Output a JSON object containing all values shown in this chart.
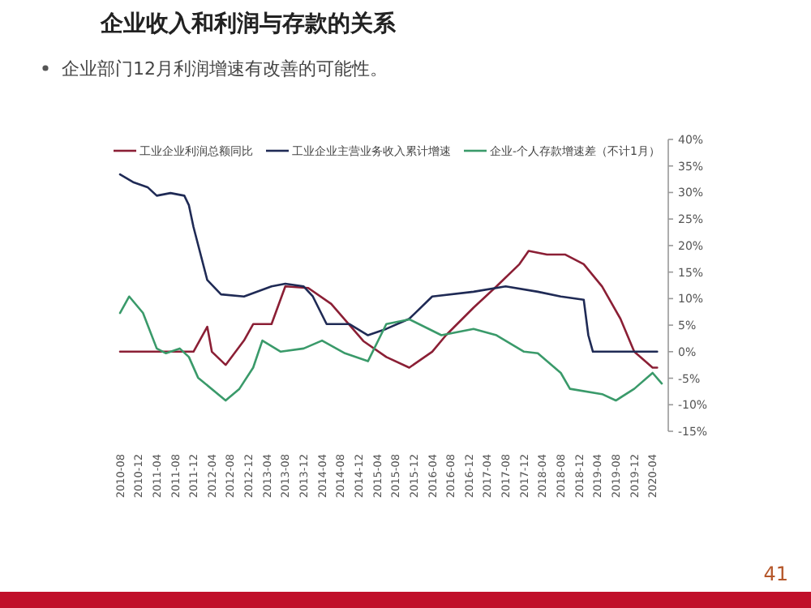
{
  "chart_data": {
    "type": "line",
    "title": "企业收入和利润与存款的关系",
    "subtitle": "企业部门12月利润增速有改善的可能性。",
    "annotations": [
      "41"
    ],
    "legend": "top",
    "grid": false,
    "marker": "none",
    "line_style": "solid",
    "xlim": [
      "2010-08",
      "2020-06"
    ],
    "xticks": [
      "2010-08",
      "2010-12",
      "2011-04",
      "2011-08",
      "2011-12",
      "2012-04",
      "2012-08",
      "2012-12",
      "2013-04",
      "2013-08",
      "2013-12",
      "2014-04",
      "2014-08",
      "2014-12",
      "2015-04",
      "2015-08",
      "2015-12",
      "2016-04",
      "2016-08",
      "2016-12",
      "2017-04",
      "2017-08",
      "2017-12",
      "2018-04",
      "2018-08",
      "2018-12",
      "2019-04",
      "2019-08",
      "2019-12",
      "2020-04"
    ],
    "ylim": [
      -15,
      40
    ],
    "yticks": [
      {
        "value": -15,
        "label": "-15%"
      },
      {
        "value": -10,
        "label": "-10%"
      },
      {
        "value": -5,
        "label": "-5%"
      },
      {
        "value": 0,
        "label": "0%"
      },
      {
        "value": 5,
        "label": "5%"
      },
      {
        "value": 10,
        "label": "10%"
      },
      {
        "value": 15,
        "label": "15%"
      },
      {
        "value": 20,
        "label": "20%"
      },
      {
        "value": 25,
        "label": "25%"
      },
      {
        "value": 30,
        "label": "30%"
      },
      {
        "value": 35,
        "label": "35%"
      },
      {
        "value": 40,
        "label": "40%"
      }
    ],
    "series": [
      {
        "name": "工业企业利润总额同比",
        "color": "#8b1f35",
        "x": [
          "2010-08",
          "2011-12",
          "2012-03",
          "2012-04",
          "2012-07",
          "2012-11",
          "2013-01",
          "2013-05",
          "2013-08",
          "2014-01",
          "2014-06",
          "2015-01",
          "2015-06",
          "2015-11",
          "2016-04",
          "2016-07",
          "2017-01",
          "2017-06",
          "2017-11",
          "2018-01",
          "2018-05",
          "2018-09",
          "2019-01",
          "2019-05",
          "2019-09",
          "2019-12",
          "2020-04",
          "2020-05"
        ],
        "values": [
          0,
          0,
          4.7,
          0,
          -2.5,
          2.1,
          5.2,
          5.2,
          12.3,
          12,
          9,
          2,
          -1,
          -3,
          0,
          3.1,
          8.3,
          12.3,
          16.5,
          19,
          18.3,
          18.3,
          16.5,
          12.3,
          6.2,
          0,
          -3,
          -3
        ]
      },
      {
        "name": "工业企业主营业务收入累计增速",
        "color": "#1f2a55",
        "x": [
          "2010-08",
          "2010-11",
          "2011-02",
          "2011-04",
          "2011-07",
          "2011-10",
          "2011-11",
          "2011-12",
          "2012-03",
          "2012-06",
          "2012-11",
          "2013-05",
          "2013-08",
          "2013-12",
          "2014-02",
          "2014-05",
          "2014-10",
          "2015-02",
          "2015-06",
          "2015-11",
          "2016-04",
          "2017-01",
          "2017-08",
          "2018-03",
          "2018-08",
          "2019-01",
          "2019-02",
          "2019-03",
          "2020-05"
        ],
        "values": [
          33.4,
          31.9,
          31,
          29.4,
          29.9,
          29.4,
          27.6,
          23.5,
          13.5,
          10.8,
          10.4,
          12.3,
          12.8,
          12.3,
          10.4,
          5.2,
          5.2,
          3.1,
          4.3,
          6.2,
          10.4,
          11.3,
          12.3,
          11.3,
          10.4,
          9.8,
          3.1,
          0,
          0
        ]
      },
      {
        "name": "企业-个人存款增速差（不计1月）",
        "color": "#3a9a6a",
        "x": [
          "2010-08",
          "2010-10",
          "2011-01",
          "2011-04",
          "2011-06",
          "2011-09",
          "2011-11",
          "2012-01",
          "2012-07",
          "2012-10",
          "2013-01",
          "2013-03",
          "2013-07",
          "2013-12",
          "2014-04",
          "2014-09",
          "2015-02",
          "2015-06",
          "2015-11",
          "2016-06",
          "2017-01",
          "2017-06",
          "2017-12",
          "2018-03",
          "2018-08",
          "2018-10",
          "2019-05",
          "2019-08",
          "2019-12",
          "2020-04",
          "2020-06"
        ],
        "values": [
          7.3,
          10.4,
          7.3,
          0.6,
          -0.3,
          0.6,
          -1,
          -4.9,
          -9.2,
          -7,
          -3,
          2.1,
          0,
          0.6,
          2.1,
          -0.3,
          -1.8,
          5.2,
          6.1,
          3.1,
          4.3,
          3.1,
          0,
          -0.3,
          -4,
          -7,
          -8,
          -9.2,
          -7,
          -4,
          -6
        ]
      }
    ]
  }
}
